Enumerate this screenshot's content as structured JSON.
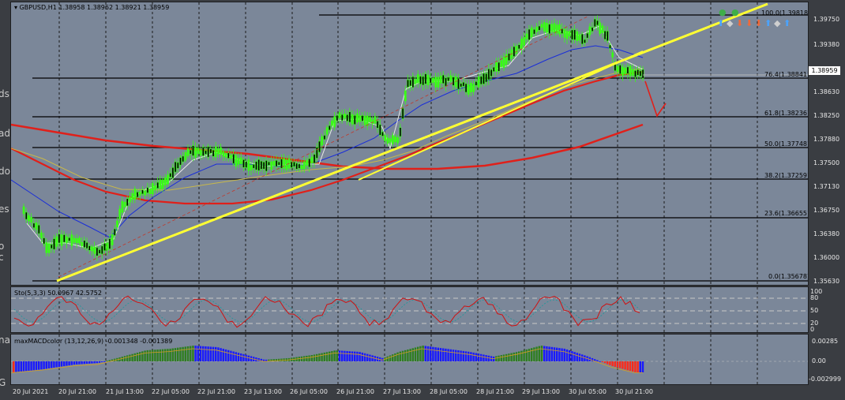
{
  "header": {
    "symbol_line": "GBPUSD,H1  1.38958 1.38962 1.38921 1.38959"
  },
  "price_axis": [
    "1.39750",
    "1.39380",
    "1.38630",
    "1.38250",
    "1.37880",
    "1.37500",
    "1.37130",
    "1.36750",
    "1.36380",
    "1.36000",
    "1.35630"
  ],
  "current_price": "1.38959",
  "fib_levels": [
    {
      "label": "100.0(1.39818)"
    },
    {
      "label": "76.4(1.38841)"
    },
    {
      "label": "61.8(1.38236)"
    },
    {
      "label": "50.0(1.37748)"
    },
    {
      "label": "38.2(1.37259)"
    },
    {
      "label": "23.6(1.36655)"
    },
    {
      "label": "0.0(1.35678)"
    }
  ],
  "sto": {
    "title": "Sto(5,3,3) 50.0967 42.5752",
    "axis": [
      "100",
      "80",
      "50",
      "20",
      "0"
    ]
  },
  "macd": {
    "title": "maxMACDcolor (13,12,26,9) -0.001348 -0.001389",
    "axis": [
      "0.00285",
      "0.00",
      "-0.002999"
    ]
  },
  "time_axis": [
    "20 Jul 2021",
    "20 Jul 21:00",
    "21 Jul 13:00",
    "22 Jul 05:00",
    "22 Jul 21:00",
    "23 Jul 13:00",
    "26 Jul 05:00",
    "26 Jul 21:00",
    "27 Jul 13:00",
    "28 Jul 05:00",
    "28 Jul 21:00",
    "29 Jul 13:00",
    "30 Jul 05:00",
    "30 Jul 21:00"
  ],
  "left_strip_letters": [
    "ds",
    "ad",
    "do",
    "es",
    "o c",
    "na",
    "G"
  ],
  "signals": [
    {
      "dir": "up",
      "color": "#3fae49"
    },
    {
      "dir": "up",
      "color": "#3fae49"
    },
    {
      "dir": "down",
      "color": "#4aa3ff"
    },
    {
      "dir": "diamond",
      "color": "#cfcfcf"
    },
    {
      "dir": "down",
      "color": "#f06a3a"
    },
    {
      "dir": "down",
      "color": "#f06a3a"
    },
    {
      "dir": "down",
      "color": "#f06a3a"
    },
    {
      "dir": "up",
      "color": "#4aa3ff"
    },
    {
      "dir": "diamond",
      "color": "#cfcfcf"
    },
    {
      "dir": "up",
      "color": "#4aa3ff"
    }
  ],
  "colors": {
    "background": "#7b8799",
    "bull_candle": "#39ff14",
    "trendline": "#ffff33",
    "ma_slow": "#e0201a",
    "ma_fast": "#1a2ed8",
    "ma_white": "#e8e8e8",
    "ma_yellow": "#c8b84a",
    "macd_up": "#2f7f1f",
    "macd_down_strong": "#ff2a1a",
    "macd_down": "#1a1aff",
    "sto_main": "#d01010",
    "sto_signal": "#1a9a9a"
  }
}
